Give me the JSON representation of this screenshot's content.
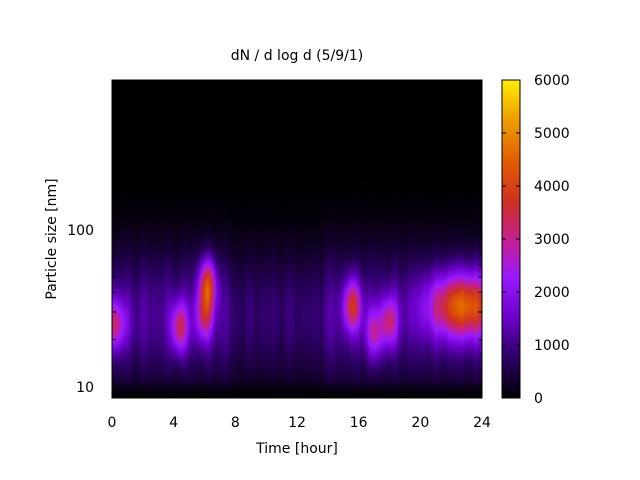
{
  "chart_data": {
    "type": "heatmap",
    "title": "dN / d log d (5/9/1)",
    "xlabel": "Time [hour]",
    "ylabel": "Particle size [nm]",
    "xlim": [
      0,
      24
    ],
    "ylim": [
      8.5,
      900
    ],
    "y_scale": "log",
    "x_ticks": [
      "0",
      "4",
      "8",
      "12",
      "16",
      "20",
      "24"
    ],
    "x_tick_values": [
      0,
      4,
      8,
      12,
      16,
      20,
      24
    ],
    "y_ticks": [
      "10",
      "100"
    ],
    "y_tick_values": [
      10,
      100
    ],
    "colorbar": {
      "range": [
        0,
        6000
      ],
      "ticks": [
        "0",
        "1000",
        "2000",
        "3000",
        "4000",
        "5000",
        "6000"
      ],
      "tick_values": [
        0,
        1000,
        2000,
        3000,
        4000,
        5000,
        6000
      ],
      "colormap": [
        "#000000",
        "#2a0060",
        "#6a00c8",
        "#9a19ff",
        "#c01fa0",
        "#d03020",
        "#e06000",
        "#f0a000",
        "#ffee00"
      ]
    },
    "grid": false,
    "legend": "colorbar-right",
    "background_features": [
      {
        "time": 0.0,
        "diameter_nm": 25,
        "value": 3400
      },
      {
        "time": 4.4,
        "diameter_nm": 24,
        "value": 3600
      },
      {
        "time": 6.2,
        "diameter_nm": 45,
        "value": 4300
      },
      {
        "time": 6.0,
        "diameter_nm": 28,
        "value": 3300
      },
      {
        "time": 15.6,
        "diameter_nm": 33,
        "value": 3900
      },
      {
        "time": 17.0,
        "diameter_nm": 22,
        "value": 3000
      },
      {
        "time": 18.0,
        "diameter_nm": 26,
        "value": 3300
      },
      {
        "time": 22.8,
        "diameter_nm": 33,
        "value": 4700
      }
    ]
  }
}
